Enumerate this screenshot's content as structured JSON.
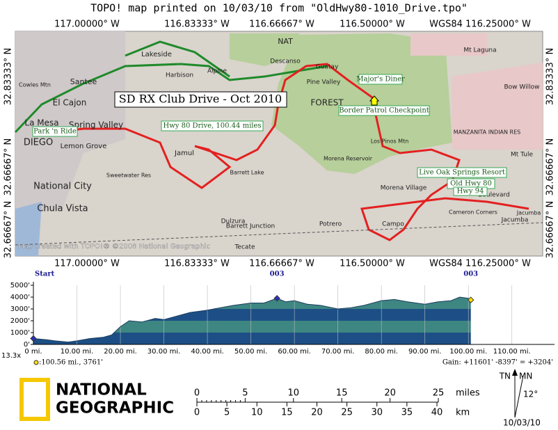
{
  "header": {
    "title": "TOPO! map printed on 10/03/10 from \"OldHwy80-1010_Drive.tpo\""
  },
  "map": {
    "top_coords": [
      "117.00000° W",
      "116.83333° W",
      "116.66667° W",
      "116.50000° W",
      "WGS84 116.25000° W"
    ],
    "bottom_coords": [
      "117.00000° W",
      "116.83333° W",
      "116.66667° W",
      "116.50000° W",
      "WGS84 116.25000° W"
    ],
    "left_coords": [
      "32.83333° N",
      "32.66667° N",
      "32.66667° N"
    ],
    "right_coords": [
      "32.83333° N",
      "32.66667° N",
      "32.66667° N"
    ],
    "places": [
      "Santee",
      "El Cajon",
      "La Mesa",
      "Spring Valley",
      "Lemon Grove",
      "DIEGO",
      "National City",
      "Chula Vista",
      "Lakeside",
      "Alpine",
      "Descanso",
      "Guatay",
      "Pine Valley",
      "Harbison",
      "Jamul",
      "Dulzura",
      "Barrett Junction",
      "Potrero",
      "Campo",
      "Morena Village",
      "Tecate",
      "Boulevard",
      "Jacumba",
      "Mt Laguna",
      "MANZANITA INDIAN RES",
      "Mt Tule",
      "FOREST",
      "NAT",
      "Cowles Mtn",
      "Los Pinos Mtn",
      "Morena Reservoir",
      "Barrett Lake",
      "Sweetwater Res",
      "Bow Willow",
      "Cameron Corners",
      "Jacumba"
    ],
    "callouts": [
      "SD RX Club Drive - Oct 2010",
      "Hwy 80 Drive, 100.44 miles",
      "Park 'n Ride",
      "Major's Diner",
      "Border Patrol Checkpoint",
      "Live Oak Springs Resort",
      "Old Hwy 80",
      "Hwy 94"
    ],
    "credit": "Map created with TOPO!® ©2008 National Geographic"
  },
  "profile": {
    "waypoints": [
      "Start",
      "003",
      "003"
    ],
    "xlim": [
      0,
      115
    ],
    "ylim": [
      0,
      5000
    ],
    "xticks": [
      {
        "value": 0,
        "label": "0 mi."
      },
      {
        "value": 10,
        "label": "10.00 mi."
      },
      {
        "value": 20,
        "label": "20.00 mi."
      },
      {
        "value": 30,
        "label": "30.00 mi."
      },
      {
        "value": 40,
        "label": "40.00 mi."
      },
      {
        "value": 50,
        "label": "50.00 mi."
      },
      {
        "value": 60,
        "label": "60.00 mi."
      },
      {
        "value": 70,
        "label": "70.00 mi."
      },
      {
        "value": 80,
        "label": "80.00 mi."
      },
      {
        "value": 90,
        "label": "90.00 mi."
      },
      {
        "value": 100,
        "label": "100.00 mi."
      },
      {
        "value": 110,
        "label": "110.00 mi."
      }
    ],
    "yticks": [
      {
        "value": 0,
        "label": "0'"
      },
      {
        "value": 1000,
        "label": "1000'"
      },
      {
        "value": 2000,
        "label": "2000'"
      },
      {
        "value": 3000,
        "label": "3000'"
      },
      {
        "value": 4000,
        "label": "4000'"
      },
      {
        "value": 5000,
        "label": "5000'"
      }
    ],
    "miles": [
      0,
      3,
      5,
      8,
      10,
      13,
      16,
      18,
      20,
      22,
      25,
      28,
      30,
      33,
      36,
      40,
      43,
      46,
      50,
      53,
      56,
      58,
      60,
      63,
      66,
      70,
      73,
      76,
      80,
      83,
      86,
      90,
      93,
      96,
      98,
      100,
      100.56
    ],
    "elevations": [
      500,
      400,
      300,
      200,
      300,
      500,
      600,
      800,
      1500,
      2000,
      1900,
      2200,
      2100,
      2400,
      2700,
      2900,
      3100,
      3300,
      3500,
      3500,
      3900,
      3600,
      3700,
      3400,
      3300,
      3000,
      3100,
      3300,
      3700,
      3800,
      3600,
      3400,
      3600,
      3700,
      4000,
      3900,
      3761
    ],
    "zoom": "13.3x",
    "cursor": ":100.56 mi., 3761'",
    "gain": "Gain: +11601' -8397' = +3204'"
  },
  "footer": {
    "logo": [
      "NATIONAL",
      "GEOGRAPHIC"
    ],
    "miles_ticks": [
      0,
      5,
      10,
      15,
      20,
      25
    ],
    "miles_unit": "miles",
    "km_ticks": [
      0,
      5,
      10,
      15,
      20,
      25,
      30,
      35,
      40
    ],
    "km_unit": "km",
    "true_north": "TN",
    "magnetic_north": "MN",
    "declination": "12°",
    "date": "10/03/10"
  }
}
